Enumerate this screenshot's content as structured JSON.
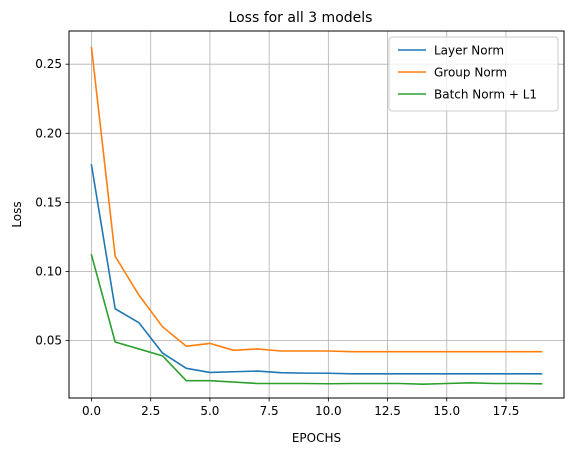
{
  "chart_data": {
    "type": "line",
    "title": "Loss for all 3 models",
    "xlabel": "EPOCHS",
    "ylabel": "Loss",
    "xlim": [
      -0.95,
      19.95
    ],
    "ylim": [
      0.0085,
      0.274
    ],
    "xticks": [
      0.0,
      2.5,
      5.0,
      7.5,
      10.0,
      12.5,
      15.0,
      17.5
    ],
    "xtick_labels": [
      "0.0",
      "2.5",
      "5.0",
      "7.5",
      "10.0",
      "12.5",
      "15.0",
      "17.5"
    ],
    "yticks": [
      0.05,
      0.1,
      0.15,
      0.2,
      0.25
    ],
    "ytick_labels": [
      "0.05",
      "0.10",
      "0.15",
      "0.20",
      "0.25"
    ],
    "grid": true,
    "legend_position": "top-right",
    "x": [
      0,
      1,
      2,
      3,
      4,
      5,
      6,
      7,
      8,
      9,
      10,
      11,
      12,
      13,
      14,
      15,
      16,
      17,
      18,
      19
    ],
    "series": [
      {
        "name": "Layer Norm",
        "color": "#1f77b4",
        "values": [
          0.177,
          0.073,
          0.063,
          0.041,
          0.03,
          0.027,
          0.0275,
          0.028,
          0.0268,
          0.0265,
          0.0264,
          0.026,
          0.026,
          0.026,
          0.026,
          0.026,
          0.026,
          0.026,
          0.026,
          0.026
        ]
      },
      {
        "name": "Group Norm",
        "color": "#ff7f0e",
        "values": [
          0.262,
          0.111,
          0.083,
          0.06,
          0.046,
          0.048,
          0.043,
          0.044,
          0.0425,
          0.0425,
          0.0425,
          0.042,
          0.042,
          0.042,
          0.042,
          0.042,
          0.042,
          0.042,
          0.042,
          0.042
        ]
      },
      {
        "name": "Batch Norm + L1",
        "color": "#2ca02c",
        "values": [
          0.112,
          0.049,
          0.044,
          0.039,
          0.021,
          0.021,
          0.02,
          0.019,
          0.019,
          0.019,
          0.0188,
          0.019,
          0.019,
          0.019,
          0.0185,
          0.019,
          0.0195,
          0.019,
          0.019,
          0.0188
        ]
      }
    ]
  }
}
